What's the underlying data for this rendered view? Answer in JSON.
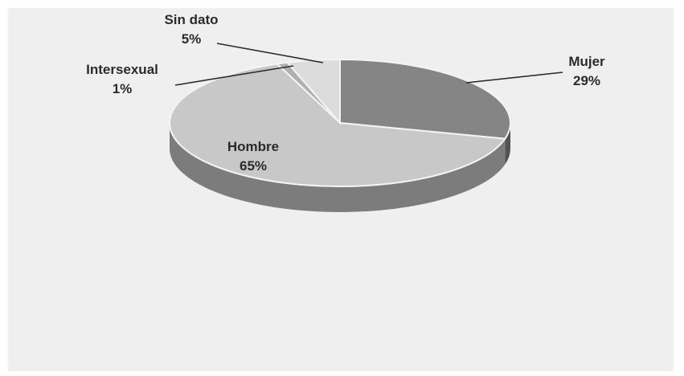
{
  "chart_data": {
    "type": "pie",
    "title": "",
    "slices": [
      {
        "name": "Mujer",
        "value": 29,
        "label": "29%",
        "color": "#858585"
      },
      {
        "name": "Hombre",
        "value": 65,
        "label": "65%",
        "color": "#c8c8c8"
      },
      {
        "name": "Intersexual",
        "value": 1,
        "label": "1%",
        "color": "#b0b0b0"
      },
      {
        "name": "Sin dato",
        "value": 5,
        "label": "5%",
        "color": "#dcdcdc"
      }
    ],
    "style": "3d"
  }
}
